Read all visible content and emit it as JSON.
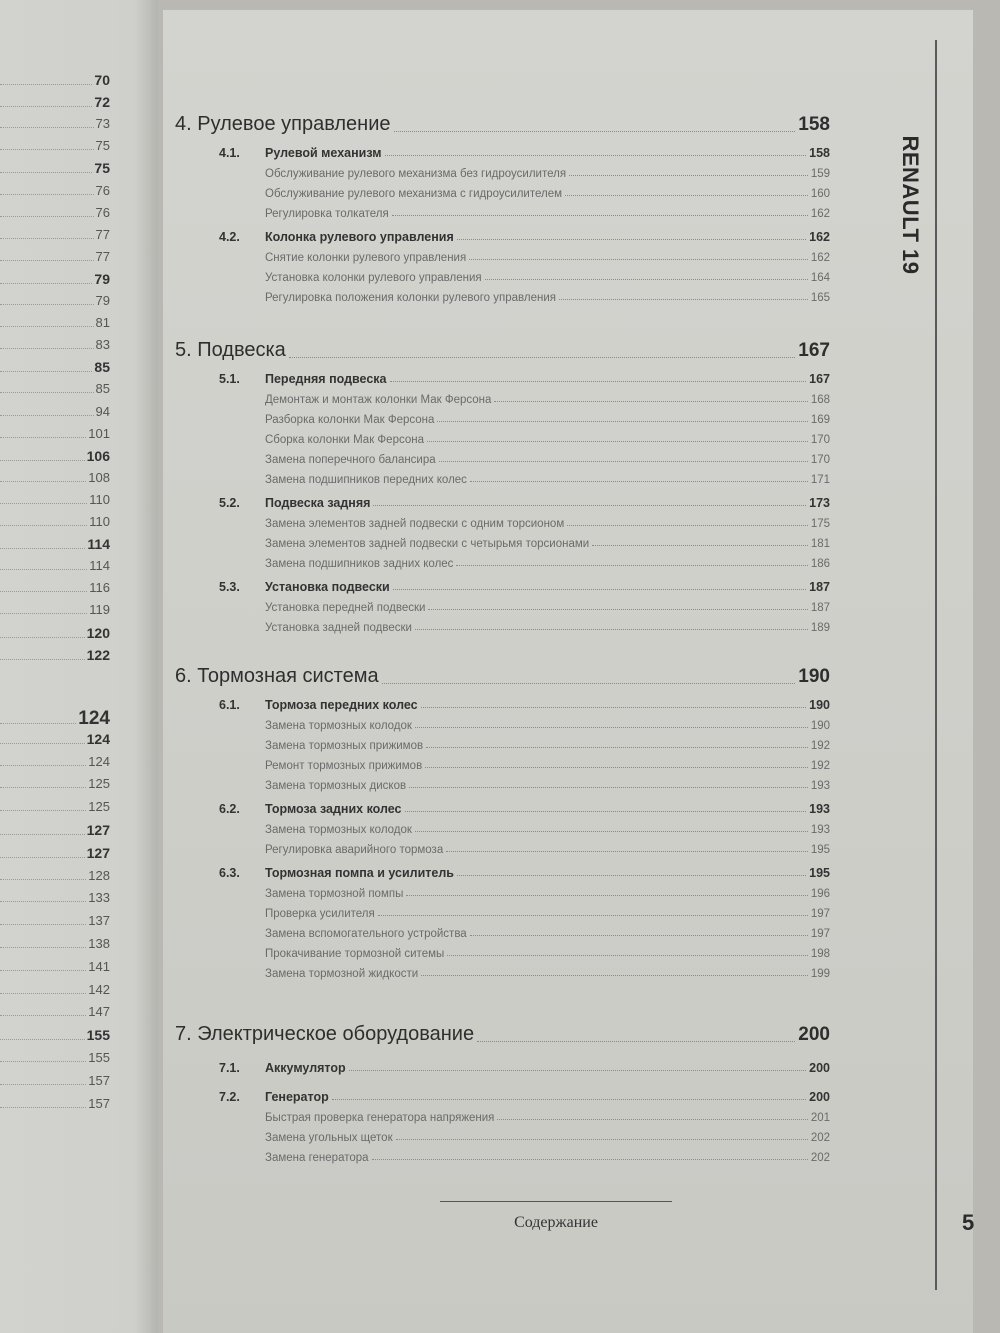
{
  "left_page": {
    "page_numbers": [
      {
        "n": "70",
        "style": "bold"
      },
      {
        "n": "72",
        "style": "bold"
      },
      {
        "n": "73",
        "style": "normal"
      },
      {
        "n": "75",
        "style": "normal"
      },
      {
        "n": "75",
        "style": "bold"
      },
      {
        "n": "76",
        "style": "normal"
      },
      {
        "n": "76",
        "style": "normal"
      },
      {
        "n": "77",
        "style": "normal"
      },
      {
        "n": "77",
        "style": "normal"
      },
      {
        "n": "79",
        "style": "bold"
      },
      {
        "n": "79",
        "style": "normal"
      },
      {
        "n": "81",
        "style": "normal"
      },
      {
        "n": "83",
        "style": "normal"
      },
      {
        "n": "85",
        "style": "bold"
      },
      {
        "n": "85",
        "style": "normal"
      },
      {
        "n": "94",
        "style": "normal"
      },
      {
        "n": "101",
        "style": "normal"
      },
      {
        "n": "106",
        "style": "bold"
      },
      {
        "n": "108",
        "style": "normal"
      },
      {
        "n": "110",
        "style": "normal"
      },
      {
        "n": "110",
        "style": "normal"
      },
      {
        "n": "114",
        "style": "bold"
      },
      {
        "n": "114",
        "style": "normal"
      },
      {
        "n": "116",
        "style": "normal"
      },
      {
        "n": "119",
        "style": "normal"
      },
      {
        "n": "120",
        "style": "bold"
      },
      {
        "n": "122",
        "style": "bold"
      },
      {
        "n": "124",
        "style": "big"
      },
      {
        "n": "124",
        "style": "bold"
      },
      {
        "n": "124",
        "style": "normal"
      },
      {
        "n": "125",
        "style": "normal"
      },
      {
        "n": "125",
        "style": "normal"
      },
      {
        "n": "127",
        "style": "bold"
      },
      {
        "n": "127",
        "style": "bold"
      },
      {
        "n": "128",
        "style": "normal"
      },
      {
        "n": "133",
        "style": "normal"
      },
      {
        "n": "137",
        "style": "normal"
      },
      {
        "n": "138",
        "style": "normal"
      },
      {
        "n": "141",
        "style": "normal"
      },
      {
        "n": "142",
        "style": "normal"
      },
      {
        "n": "147",
        "style": "normal"
      },
      {
        "n": "155",
        "style": "bold"
      },
      {
        "n": "155",
        "style": "normal"
      },
      {
        "n": "157",
        "style": "normal"
      },
      {
        "n": "157",
        "style": "normal"
      }
    ]
  },
  "side_tab": "RENAULT 19",
  "sections": [
    {
      "title": "4. Рулевое управление",
      "page": "158",
      "rows": [
        {
          "type": "sub",
          "code": "4.1.",
          "title": "Рулевой механизм",
          "page": "158"
        },
        {
          "type": "item",
          "title": "Обслуживание рулевого механизма без гидроусилителя",
          "page": "159"
        },
        {
          "type": "item",
          "title": "Обслуживание рулевого механизма с гидроусилителем",
          "page": "160"
        },
        {
          "type": "item",
          "title": "Регулировка толкателя",
          "page": "162"
        },
        {
          "type": "sub",
          "code": "4.2.",
          "title": "Колонка рулевого управления",
          "page": "162"
        },
        {
          "type": "item",
          "title": "Снятие колонки рулевого управления",
          "page": "162"
        },
        {
          "type": "item",
          "title": "Установка колонки рулевого управления",
          "page": "164"
        },
        {
          "type": "item",
          "title": "Регулировка положения колонки рулевого управления",
          "page": "165"
        }
      ]
    },
    {
      "title": "5. Подвеска",
      "page": "167",
      "rows": [
        {
          "type": "sub",
          "code": "5.1.",
          "title": "Передняя подвеска",
          "page": "167"
        },
        {
          "type": "item",
          "title": "Демонтаж и монтаж колонки Мак Ферсона",
          "page": "168"
        },
        {
          "type": "item",
          "title": "Разборка колонки Мак Ферсона",
          "page": "169"
        },
        {
          "type": "item",
          "title": "Сборка колонки Мак Ферсона",
          "page": "170"
        },
        {
          "type": "item",
          "title": "Замена поперечного балансира",
          "page": "170"
        },
        {
          "type": "item",
          "title": "Замена подшипников передних колес",
          "page": "171"
        },
        {
          "type": "sub",
          "code": "5.2.",
          "title": "Подвеска задняя",
          "page": "173"
        },
        {
          "type": "item",
          "title": "Замена элементов задней подвески с одним торсионом",
          "page": "175"
        },
        {
          "type": "item",
          "title": "Замена элементов задней подвески с четырьмя торсионами",
          "page": "181"
        },
        {
          "type": "item",
          "title": "Замена подшипников задних колес",
          "page": "186"
        },
        {
          "type": "sub",
          "code": "5.3.",
          "title": "Установка подвески",
          "page": "187"
        },
        {
          "type": "item",
          "title": "Установка передней подвески",
          "page": "187"
        },
        {
          "type": "item",
          "title": "Установка задней подвески",
          "page": "189"
        }
      ]
    },
    {
      "title": "6. Тормозная система",
      "page": "190",
      "rows": [
        {
          "type": "sub",
          "code": "6.1.",
          "title": "Тормоза передних колес",
          "page": "190"
        },
        {
          "type": "item",
          "title": "Замена тормозных колодок",
          "page": "190"
        },
        {
          "type": "item",
          "title": "Замена тормозных прижимов",
          "page": "192"
        },
        {
          "type": "item",
          "title": "Ремонт тормозных прижимов",
          "page": "192"
        },
        {
          "type": "item",
          "title": "Замена тормозных дисков",
          "page": "193"
        },
        {
          "type": "sub",
          "code": "6.2.",
          "title": "Тормоза задних колес",
          "page": "193"
        },
        {
          "type": "item",
          "title": "Замена тормозных колодок",
          "page": "193"
        },
        {
          "type": "item",
          "title": "Регулировка аварийного тормоза",
          "page": "195"
        },
        {
          "type": "sub",
          "code": "6.3.",
          "title": "Тормозная помпа и усилитель",
          "page": "195"
        },
        {
          "type": "item",
          "title": "Замена тормозной помпы",
          "page": "196"
        },
        {
          "type": "item",
          "title": "Проверка усилителя",
          "page": "197"
        },
        {
          "type": "item",
          "title": "Замена вспомогательного устройства",
          "page": "197"
        },
        {
          "type": "item",
          "title": "Прокачивание тормозной ситемы",
          "page": "198"
        },
        {
          "type": "item",
          "title": "Замена тормозной жидкости",
          "page": "199"
        }
      ]
    },
    {
      "title": "7. Электрическое оборудование",
      "page": "200",
      "rows": [
        {
          "type": "sub",
          "code": "7.1.",
          "title": "Аккумулятор",
          "page": "200"
        },
        {
          "type": "sub",
          "code": "7.2.",
          "title": "Генератор",
          "page": "200"
        },
        {
          "type": "item",
          "title": "Быстрая проверка генератора напряжения",
          "page": "201"
        },
        {
          "type": "item",
          "title": "Замена угольных щеток",
          "page": "202"
        },
        {
          "type": "item",
          "title": "Замена генератора",
          "page": "202"
        }
      ]
    }
  ],
  "footer": {
    "title": "Содержание",
    "page_number": "5"
  }
}
